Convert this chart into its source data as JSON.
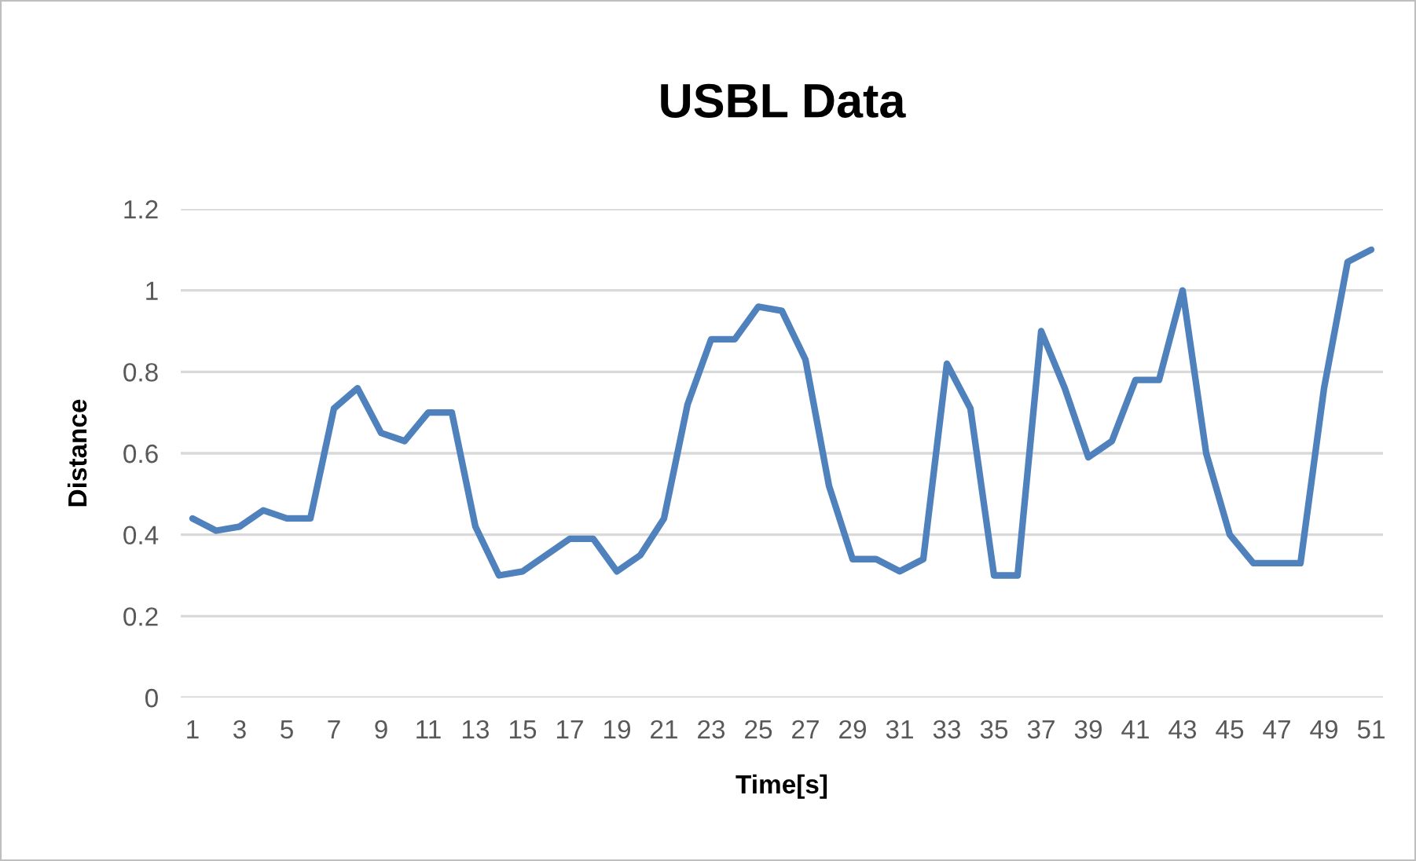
{
  "chart_data": {
    "type": "line",
    "title": "USBL Data",
    "xlabel": "Time[s]",
    "ylabel": "Distance",
    "categories": [
      "1",
      null,
      "3",
      null,
      "5",
      null,
      "7",
      null,
      "9",
      null,
      "11",
      null,
      "13",
      null,
      "15",
      null,
      "17",
      null,
      "19",
      null,
      "21",
      null,
      "23",
      null,
      "25",
      null,
      "27",
      null,
      "29",
      null,
      "31",
      null,
      "33",
      null,
      "35",
      null,
      "37",
      null,
      "39",
      null,
      "41",
      null,
      "43",
      null,
      "45",
      null,
      "47",
      null,
      "49",
      null,
      "51"
    ],
    "series": [
      {
        "color": "#4f81bd",
        "values": [
          0.44,
          0.41,
          0.42,
          0.46,
          0.44,
          0.44,
          0.71,
          0.76,
          0.65,
          0.63,
          0.7,
          0.7,
          0.42,
          0.3,
          0.31,
          0.35,
          0.39,
          0.39,
          0.31,
          0.35,
          0.44,
          0.72,
          0.88,
          0.88,
          0.96,
          0.95,
          0.83,
          0.52,
          0.34,
          0.34,
          0.31,
          0.34,
          0.82,
          0.71,
          0.3,
          0.3,
          0.9,
          0.76,
          0.59,
          0.63,
          0.78,
          0.78,
          1.0,
          0.6,
          0.4,
          0.33,
          0.33,
          0.33,
          0.76,
          1.07,
          1.1
        ]
      }
    ],
    "ylim": [
      0,
      1.2
    ],
    "yticks": [
      {
        "value": 0,
        "label": "0"
      },
      0.2,
      0.4,
      0.6,
      0.8,
      {
        "value": 1,
        "label": "1"
      },
      1.2
    ],
    "grid": "y",
    "legend": false
  }
}
